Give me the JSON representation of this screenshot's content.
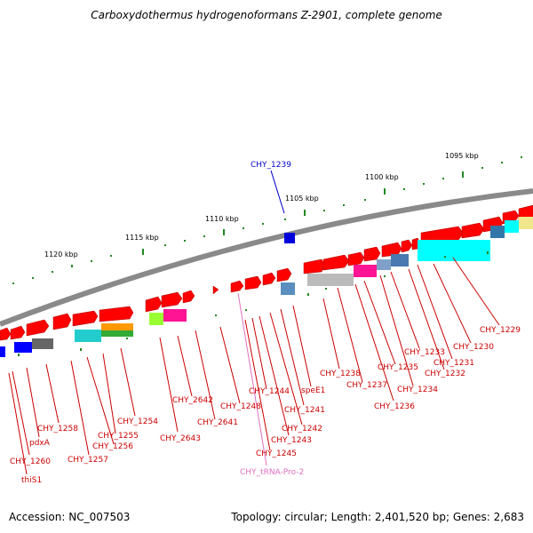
{
  "title": "Carboxydothermus hydrogenoformans Z-2901, complete genome",
  "footer": {
    "accession": "Accession: NC_007503",
    "summary": "Topology: circular; Length: 2,401,520 bp; Genes: 2,683"
  },
  "colors": {
    "backbone": "#8c8c8c",
    "gene_forward": "#ff0000",
    "label_red": "#cc0000",
    "label_blue": "#0000cc",
    "label_pink": "#e070c0",
    "ticks": "#228822"
  },
  "ticks": [
    "1095 kbp",
    "1100 kbp",
    "1105 kbp",
    "1110 kbp",
    "1115 kbp",
    "1120 kbp"
  ],
  "highlight_label": "CHY_1239",
  "gene_labels": [
    "CHY_1229",
    "CHY_1230",
    "CHY_1231",
    "CHY_1232",
    "CHY_1233",
    "CHY_1234",
    "CHY_1235",
    "CHY_1236",
    "CHY_1237",
    "CHY_1238",
    "speE1",
    "CHY_1241",
    "CHY_1242",
    "CHY_1243",
    "CHY_1244",
    "CHY_1245",
    "CHY_tRNA-Pro-2",
    "CHY_1248",
    "CHY_2641",
    "CHY_2642",
    "CHY_2643",
    "CHY_1254",
    "CHY_1255",
    "CHY_1256",
    "CHY_1257",
    "CHY_1258",
    "pdxA",
    "CHY_1260",
    "thiS1"
  ]
}
